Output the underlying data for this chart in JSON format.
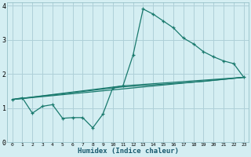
{
  "xlabel": "Humidex (Indice chaleur)",
  "bg_color": "#d4eef2",
  "grid_color": "#aed0d8",
  "line_color": "#1a7a6e",
  "xlim": [
    -0.5,
    23.5
  ],
  "ylim": [
    0,
    4.1
  ],
  "xticks": [
    0,
    1,
    2,
    3,
    4,
    5,
    6,
    7,
    8,
    9,
    10,
    11,
    12,
    13,
    14,
    15,
    16,
    17,
    18,
    19,
    20,
    21,
    22,
    23
  ],
  "yticks": [
    0,
    1,
    2,
    3,
    4
  ],
  "series1_x": [
    0,
    1,
    2,
    3,
    4,
    5,
    6,
    7,
    8,
    9,
    10,
    11,
    12,
    13,
    14,
    15,
    16,
    17,
    18,
    19,
    20,
    21,
    22,
    23
  ],
  "series1_y": [
    1.25,
    1.3,
    0.85,
    1.05,
    1.1,
    0.7,
    0.72,
    0.72,
    0.42,
    0.82,
    1.6,
    1.65,
    2.55,
    3.9,
    3.75,
    3.55,
    3.35,
    3.05,
    2.88,
    2.65,
    2.5,
    2.38,
    2.3,
    1.9
  ],
  "series2_x": [
    0,
    23
  ],
  "series2_y": [
    1.25,
    1.9
  ],
  "series3_x": [
    0,
    11,
    23
  ],
  "series3_y": [
    1.25,
    1.65,
    1.9
  ],
  "series4_x": [
    0,
    11,
    19,
    23
  ],
  "series4_y": [
    1.25,
    1.62,
    1.78,
    1.9
  ]
}
